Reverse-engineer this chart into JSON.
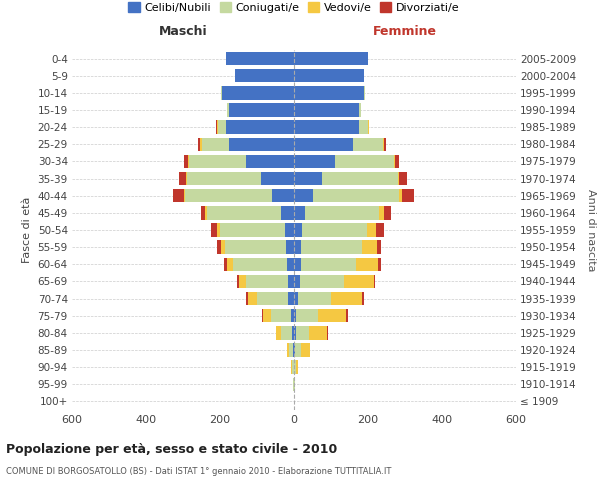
{
  "age_groups": [
    "100+",
    "95-99",
    "90-94",
    "85-89",
    "80-84",
    "75-79",
    "70-74",
    "65-69",
    "60-64",
    "55-59",
    "50-54",
    "45-49",
    "40-44",
    "35-39",
    "30-34",
    "25-29",
    "20-24",
    "15-19",
    "10-14",
    "5-9",
    "0-4"
  ],
  "birth_years": [
    "≤ 1909",
    "1910-1914",
    "1915-1919",
    "1920-1924",
    "1925-1929",
    "1930-1934",
    "1935-1939",
    "1940-1944",
    "1945-1949",
    "1950-1954",
    "1955-1959",
    "1960-1964",
    "1965-1969",
    "1970-1974",
    "1975-1979",
    "1980-1984",
    "1985-1989",
    "1990-1994",
    "1995-1999",
    "2000-2004",
    "2005-2009"
  ],
  "male": {
    "celibi": [
      0,
      1,
      1,
      2,
      5,
      8,
      15,
      15,
      20,
      22,
      25,
      35,
      60,
      90,
      130,
      175,
      185,
      175,
      195,
      160,
      185
    ],
    "coniugati": [
      0,
      2,
      4,
      12,
      30,
      55,
      85,
      115,
      145,
      165,
      175,
      200,
      235,
      200,
      155,
      75,
      20,
      5,
      3,
      0,
      0
    ],
    "vedovi": [
      0,
      0,
      2,
      5,
      15,
      20,
      25,
      20,
      15,
      10,
      8,
      5,
      3,
      2,
      2,
      5,
      3,
      0,
      0,
      0,
      0
    ],
    "divorziati": [
      0,
      0,
      0,
      0,
      0,
      3,
      5,
      5,
      8,
      10,
      15,
      12,
      30,
      18,
      10,
      5,
      2,
      0,
      0,
      0,
      0
    ]
  },
  "female": {
    "nubili": [
      0,
      1,
      1,
      3,
      5,
      5,
      10,
      15,
      18,
      20,
      22,
      30,
      50,
      75,
      110,
      160,
      175,
      175,
      190,
      190,
      200
    ],
    "coniugate": [
      0,
      1,
      5,
      15,
      35,
      60,
      90,
      120,
      150,
      165,
      175,
      200,
      235,
      205,
      160,
      80,
      25,
      5,
      3,
      0,
      0
    ],
    "vedove": [
      0,
      1,
      5,
      25,
      50,
      75,
      85,
      80,
      60,
      40,
      25,
      12,
      8,
      5,
      3,
      3,
      2,
      0,
      0,
      0,
      0
    ],
    "divorziate": [
      0,
      0,
      0,
      0,
      2,
      5,
      5,
      5,
      8,
      10,
      20,
      20,
      30,
      20,
      10,
      5,
      2,
      0,
      0,
      0,
      0
    ]
  },
  "colors": {
    "celibi": "#4472C4",
    "coniugati": "#C5D9A0",
    "vedovi": "#F5C842",
    "divorziati": "#C0362C"
  },
  "xlim": 600,
  "title": "Popolazione per età, sesso e stato civile - 2010",
  "subtitle": "COMUNE DI BORGOSATOLLO (BS) - Dati ISTAT 1° gennaio 2010 - Elaborazione TUTTITALIA.IT",
  "legend_labels": [
    "Celibi/Nubili",
    "Coniugati/e",
    "Vedovi/e",
    "Divorziati/e"
  ],
  "ylabel_left": "Fasce di età",
  "ylabel_right": "Anni di nascita",
  "xlabel_left": "Maschi",
  "xlabel_right": "Femmine"
}
